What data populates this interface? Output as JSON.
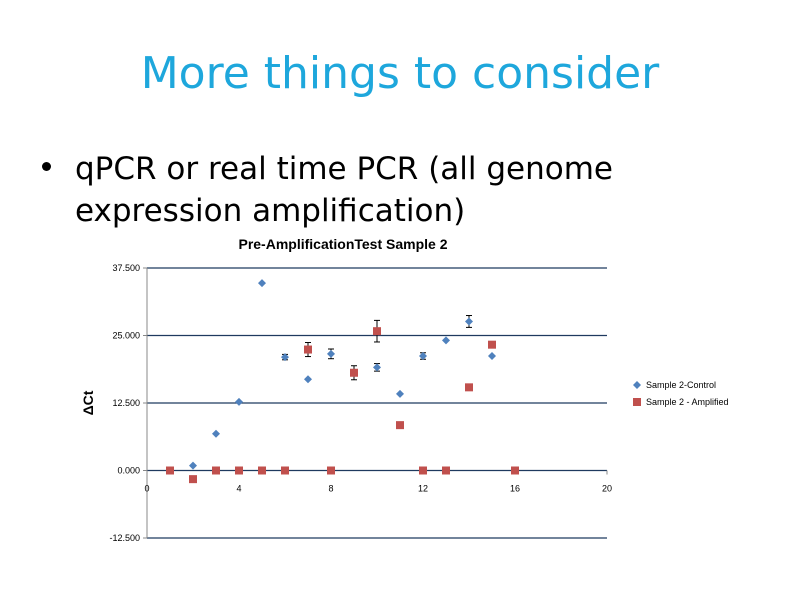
{
  "slide": {
    "title": "More things to consider",
    "bullet": "qPCR or real time PCR (all genome expression  amplification)"
  },
  "chart_data": {
    "type": "scatter",
    "title": "Pre-AmplificationTest Sample 2",
    "xlabel": "",
    "ylabel": "ΔCt",
    "xlim": [
      0,
      20
    ],
    "ylim": [
      -12.5,
      37.5
    ],
    "x_ticks": [
      0,
      4,
      8,
      12,
      16,
      20
    ],
    "x_tick_labels": [
      "0",
      "4",
      "8",
      "12",
      "16",
      "20"
    ],
    "y_ticks": [
      -12.5,
      0,
      12.5,
      25,
      37.5
    ],
    "y_tick_labels": [
      "-12.500",
      "0.000",
      "12.500",
      "25.000",
      "37.500"
    ],
    "grid_y": true,
    "legend_position": "right",
    "series": [
      {
        "name": "Sample 2-Control",
        "marker": "diamond",
        "color": "#4f81bd",
        "points": [
          {
            "x": 1,
            "y": 0.0
          },
          {
            "x": 2,
            "y": 0.9
          },
          {
            "x": 3,
            "y": 6.8
          },
          {
            "x": 4,
            "y": 12.7
          },
          {
            "x": 5,
            "y": 34.7
          },
          {
            "x": 6,
            "y": 21.0,
            "err": 0.5
          },
          {
            "x": 7,
            "y": 16.9
          },
          {
            "x": 8,
            "y": 21.6,
            "err": 0.9
          },
          {
            "x": 10,
            "y": 19.1,
            "err": 0.7
          },
          {
            "x": 11,
            "y": 14.2
          },
          {
            "x": 12,
            "y": 21.2,
            "err": 0.6
          },
          {
            "x": 13,
            "y": 24.1
          },
          {
            "x": 14,
            "y": 27.6,
            "err": 1.1
          },
          {
            "x": 15,
            "y": 21.2
          }
        ]
      },
      {
        "name": "Sample 2 -  Amplified",
        "marker": "square",
        "color": "#c0504d",
        "points": [
          {
            "x": 1,
            "y": 0.0
          },
          {
            "x": 2,
            "y": -1.6
          },
          {
            "x": 3,
            "y": 0.0
          },
          {
            "x": 4,
            "y": 0.0
          },
          {
            "x": 5,
            "y": 0.0
          },
          {
            "x": 6,
            "y": 0.0
          },
          {
            "x": 7,
            "y": 22.4,
            "err": 1.3
          },
          {
            "x": 8,
            "y": 0.0
          },
          {
            "x": 9,
            "y": 18.1,
            "err": 1.3
          },
          {
            "x": 10,
            "y": 25.8,
            "err": 2.0
          },
          {
            "x": 11,
            "y": 8.4
          },
          {
            "x": 12,
            "y": 0.0
          },
          {
            "x": 13,
            "y": 0.0
          },
          {
            "x": 14,
            "y": 15.4
          },
          {
            "x": 15,
            "y": 23.3
          },
          {
            "x": 16,
            "y": 0.0
          }
        ]
      }
    ]
  }
}
